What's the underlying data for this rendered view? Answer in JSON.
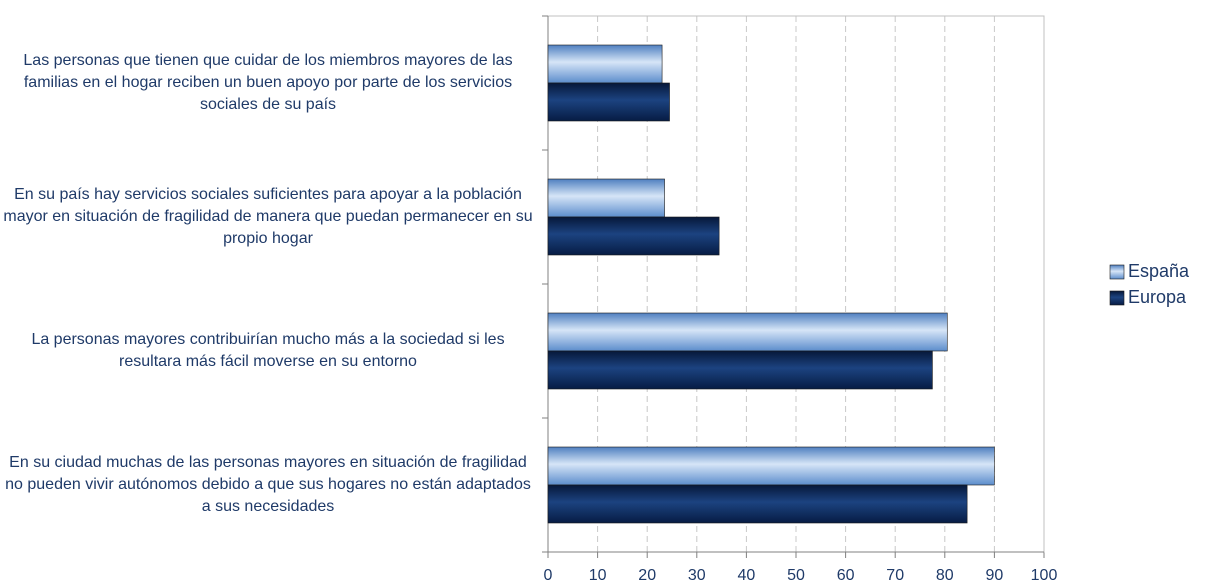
{
  "chart_data": {
    "type": "barh",
    "categories": [
      "Las personas que tienen que cuidar de los miembros mayores de las familias en el hogar reciben un buen apoyo por parte de los servicios sociales de su país",
      "En su país hay servicios sociales suficientes para apoyar a la población mayor en situación de fragilidad de manera que puedan permanecer en su propio hogar",
      "La personas mayores contribuirían mucho más a la sociedad si les resultara más fácil moverse en su entorno",
      "En su ciudad muchas de las personas mayores en situación de fragilidad no pueden vivir autónomos debido a que sus hogares no están adaptados a sus necesidades"
    ],
    "series": [
      {
        "name": "España",
        "color": "#7ea9dd",
        "values": [
          23,
          23.5,
          80.5,
          90
        ]
      },
      {
        "name": "Europa",
        "color": "#0d2b5c",
        "values": [
          24.5,
          34.5,
          77.5,
          84.5
        ]
      }
    ],
    "xlim": [
      0,
      100
    ],
    "xticks": [
      0,
      10,
      20,
      30,
      40,
      50,
      60,
      70,
      80,
      90,
      100
    ],
    "grid": true,
    "legend": "right"
  }
}
